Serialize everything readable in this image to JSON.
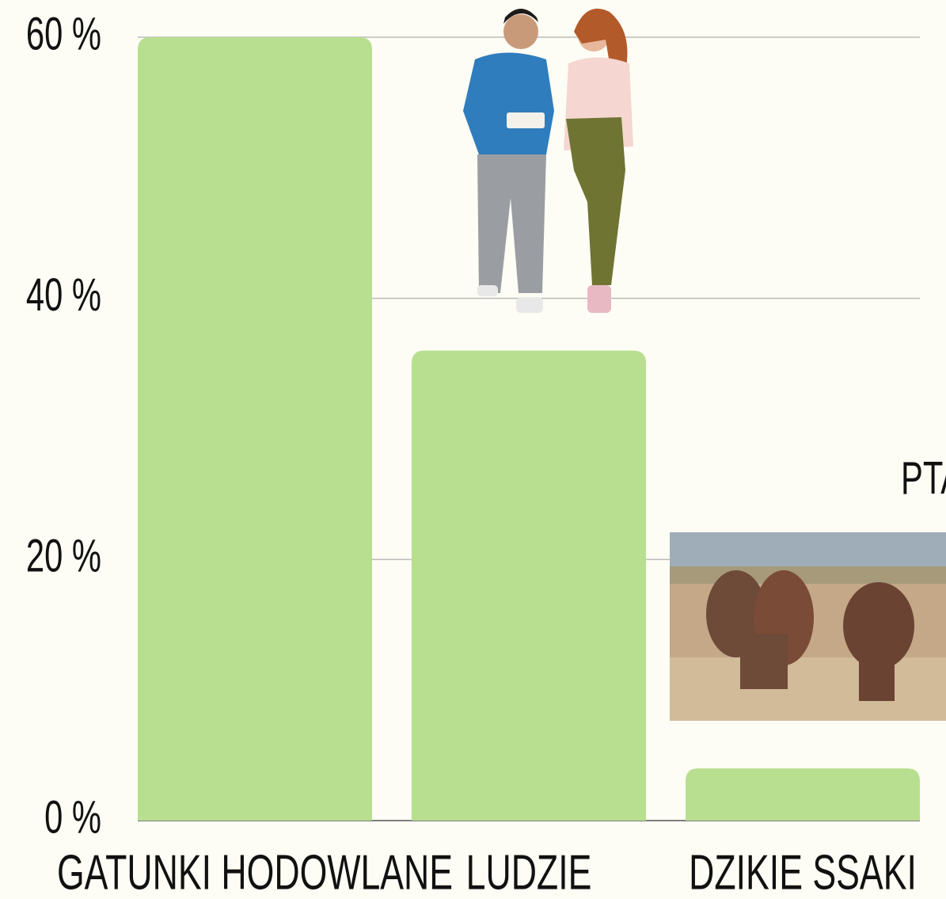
{
  "chart_data": {
    "type": "bar",
    "categories": [
      "GATUNKI HODOWLANE",
      "LUDZIE",
      "DZIKIE SSAKI"
    ],
    "values": [
      60,
      36,
      4
    ],
    "color": "#b8df90",
    "annotations": [
      "PTAKI"
    ],
    "ylim": [
      0,
      60
    ],
    "yticks": [
      {
        "value": 0,
        "label": "0 %"
      },
      {
        "value": 20,
        "label": "20 %"
      },
      {
        "value": 40,
        "label": "40 %"
      },
      {
        "value": 60,
        "label": "60 %"
      }
    ],
    "grid": true
  }
}
